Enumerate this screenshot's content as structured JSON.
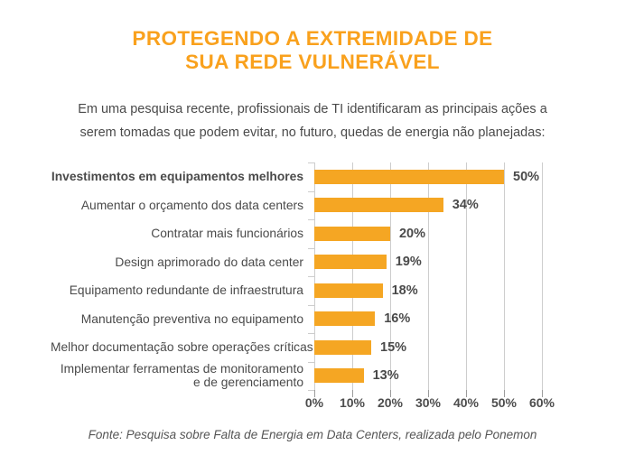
{
  "header": {
    "title_line1": "PROTEGENDO A EXTREMIDADE DE",
    "title_line2": "SUA REDE VULNERÁVEL",
    "subtitle_line1": "Em uma pesquisa recente, profissionais de TI identificaram as principais ações a",
    "subtitle_line2": "serem tomadas que podem evitar, no futuro,  quedas de energia não planejadas:"
  },
  "chart_data": {
    "type": "bar",
    "orientation": "horizontal",
    "title": "PROTEGENDO A EXTREMIDADE DE SUA REDE VULNERÁVEL",
    "categories": [
      "Investimentos em equipamentos melhores",
      "Aumentar o orçamento dos data centers",
      "Contratar mais funcionários",
      "Design aprimorado do data center",
      "Equipamento redundante de infraestrutura",
      "Manutenção preventiva no equipamento",
      "Melhor documentação sobre operações críticas",
      "Implementar ferramentas de monitoramento\ne de gerenciamento"
    ],
    "values": [
      50,
      34,
      20,
      19,
      18,
      16,
      15,
      13
    ],
    "value_labels": [
      "50%",
      "34%",
      "20%",
      "19%",
      "18%",
      "16%",
      "15%",
      "13%"
    ],
    "xlim": [
      0,
      60
    ],
    "x_tick_labels": [
      "0%",
      "10%",
      "20%",
      "30%",
      "40%",
      "50%",
      "60%"
    ],
    "grid": true,
    "legend": false,
    "first_category_bold": true
  },
  "footer": {
    "source": "Fonte: Pesquisa sobre Falta de Energia em Data Centers, realizada pelo Ponemon"
  },
  "colors": {
    "accent_orange": "#F9A11D",
    "bar": "#F5A623",
    "text_dark": "#4A4A4A",
    "gridline": "#CDCDCD",
    "tick": "#9B9B9B"
  }
}
